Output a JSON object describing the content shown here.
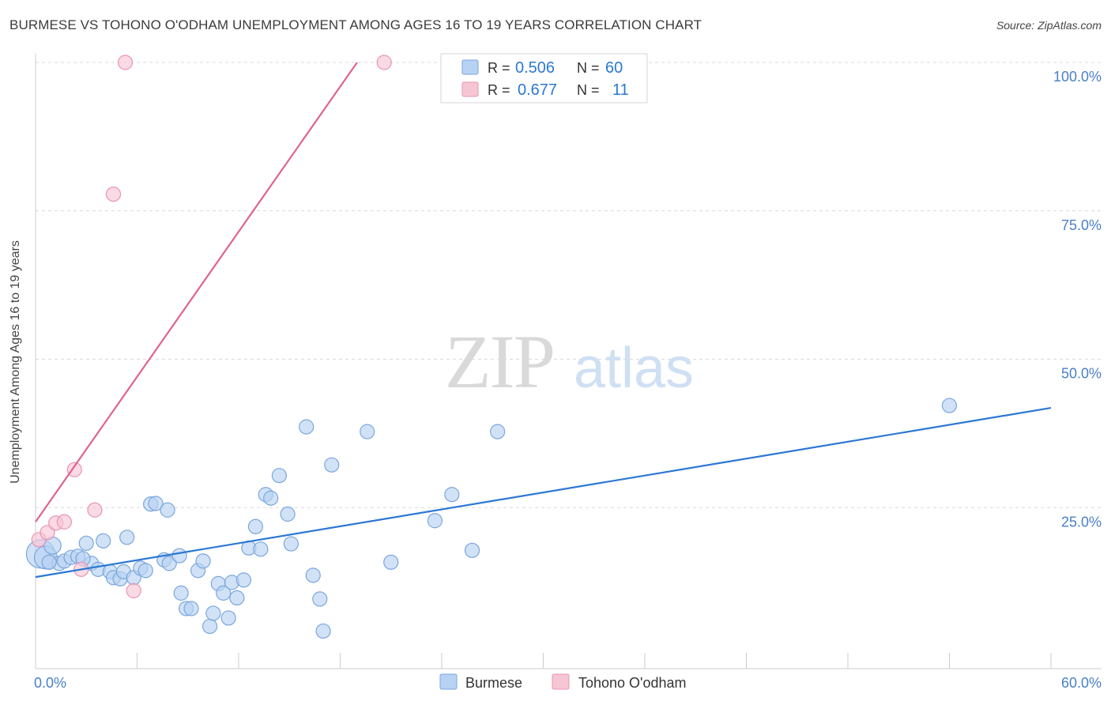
{
  "header": {
    "title": "BURMESE VS TOHONO O'ODHAM UNEMPLOYMENT AMONG AGES 16 TO 19 YEARS CORRELATION CHART",
    "source": "Source: ZipAtlas.com"
  },
  "watermark": {
    "zip": "ZIP",
    "atlas": "atlas"
  },
  "colors": {
    "blue_fill": "#b8d2f3",
    "blue_stroke": "#7aa6dc",
    "blue_line": "#2b78d4",
    "pink_fill": "#f7c6d5",
    "pink_stroke": "#e995b0",
    "pink_line": "#e0648c",
    "tick_label": "#4a7fc9",
    "grid": "#d9d9d9"
  },
  "legend_box": {
    "rows": [
      {
        "r_label": "R = ",
        "r_value": "0.506",
        "n_label": "N = ",
        "n_value": "60"
      },
      {
        "r_label": "R = ",
        "r_value": "0.677",
        "n_label": "N = ",
        "n_value": "11"
      }
    ]
  },
  "chart_data": {
    "type": "scatter",
    "title": "BURMESE VS TOHONO O'ODHAM UNEMPLOYMENT AMONG AGES 16 TO 19 YEARS CORRELATION CHART",
    "xlabel": "",
    "ylabel": "Unemployment Among Ages 16 to 19 years",
    "xlim": [
      0,
      60
    ],
    "ylim": [
      0,
      100
    ],
    "x_tick_labels": [
      {
        "value": 0,
        "label": "0.0%"
      },
      {
        "value": 60,
        "label": "60.0%"
      }
    ],
    "y_tick_labels": [
      {
        "value": 25,
        "label": "25.0%"
      },
      {
        "value": 50,
        "label": "50.0%"
      },
      {
        "value": 75,
        "label": "75.0%"
      },
      {
        "value": 100,
        "label": "100.0%"
      }
    ],
    "x_minor_ticks": [
      0,
      6,
      12,
      18,
      24,
      30,
      36,
      42,
      48,
      54,
      60
    ],
    "legend_position": "bottom-center",
    "series": [
      {
        "name": "Burmese",
        "color": "blue",
        "R": 0.506,
        "N": 60,
        "trend": {
          "x": [
            0,
            60
          ],
          "y": [
            13.3,
            41.8
          ]
        },
        "points": [
          {
            "x": 0.3,
            "y": 17.2,
            "s": 2
          },
          {
            "x": 0.6,
            "y": 16.6,
            "s": 1.6
          },
          {
            "x": 1.0,
            "y": 18.6,
            "s": 1.2
          },
          {
            "x": 1.4,
            "y": 15.6,
            "s": 1
          },
          {
            "x": 1.7,
            "y": 16.0,
            "s": 1
          },
          {
            "x": 2.1,
            "y": 16.6,
            "s": 1
          },
          {
            "x": 2.5,
            "y": 16.8,
            "s": 1
          },
          {
            "x": 3.0,
            "y": 19.0,
            "s": 1
          },
          {
            "x": 3.3,
            "y": 15.6,
            "s": 1
          },
          {
            "x": 3.7,
            "y": 14.6,
            "s": 1
          },
          {
            "x": 4.0,
            "y": 19.4,
            "s": 1
          },
          {
            "x": 4.4,
            "y": 14.2,
            "s": 1
          },
          {
            "x": 4.6,
            "y": 13.2,
            "s": 1
          },
          {
            "x": 5.0,
            "y": 13.0,
            "s": 1
          },
          {
            "x": 5.2,
            "y": 14.2,
            "s": 1
          },
          {
            "x": 5.4,
            "y": 20.0,
            "s": 1
          },
          {
            "x": 5.8,
            "y": 13.2,
            "s": 1
          },
          {
            "x": 6.2,
            "y": 14.8,
            "s": 1
          },
          {
            "x": 6.5,
            "y": 14.4,
            "s": 1
          },
          {
            "x": 6.8,
            "y": 25.6,
            "s": 1
          },
          {
            "x": 7.1,
            "y": 25.7,
            "s": 1
          },
          {
            "x": 7.6,
            "y": 16.2,
            "s": 1
          },
          {
            "x": 7.8,
            "y": 24.6,
            "s": 1
          },
          {
            "x": 7.9,
            "y": 15.6,
            "s": 1
          },
          {
            "x": 8.5,
            "y": 16.9,
            "s": 1
          },
          {
            "x": 8.6,
            "y": 10.6,
            "s": 1
          },
          {
            "x": 8.9,
            "y": 8.0,
            "s": 1
          },
          {
            "x": 9.2,
            "y": 8.0,
            "s": 1
          },
          {
            "x": 9.6,
            "y": 14.4,
            "s": 1
          },
          {
            "x": 9.9,
            "y": 16.0,
            "s": 1
          },
          {
            "x": 10.3,
            "y": 5.0,
            "s": 1
          },
          {
            "x": 10.5,
            "y": 7.2,
            "s": 1
          },
          {
            "x": 10.8,
            "y": 12.2,
            "s": 1
          },
          {
            "x": 11.1,
            "y": 10.6,
            "s": 1
          },
          {
            "x": 11.4,
            "y": 6.4,
            "s": 1
          },
          {
            "x": 11.6,
            "y": 12.4,
            "s": 1
          },
          {
            "x": 11.9,
            "y": 9.8,
            "s": 1
          },
          {
            "x": 12.3,
            "y": 12.8,
            "s": 1
          },
          {
            "x": 12.6,
            "y": 18.2,
            "s": 1
          },
          {
            "x": 13.0,
            "y": 21.8,
            "s": 1
          },
          {
            "x": 13.3,
            "y": 18.0,
            "s": 1
          },
          {
            "x": 13.6,
            "y": 27.2,
            "s": 1
          },
          {
            "x": 13.9,
            "y": 26.6,
            "s": 1
          },
          {
            "x": 14.4,
            "y": 30.4,
            "s": 1
          },
          {
            "x": 14.9,
            "y": 23.9,
            "s": 1
          },
          {
            "x": 15.1,
            "y": 18.9,
            "s": 1
          },
          {
            "x": 16.0,
            "y": 38.6,
            "s": 1
          },
          {
            "x": 16.4,
            "y": 13.6,
            "s": 1
          },
          {
            "x": 16.8,
            "y": 9.6,
            "s": 1
          },
          {
            "x": 17.0,
            "y": 4.2,
            "s": 1
          },
          {
            "x": 17.5,
            "y": 32.2,
            "s": 1
          },
          {
            "x": 19.6,
            "y": 37.8,
            "s": 1
          },
          {
            "x": 21.0,
            "y": 15.8,
            "s": 1
          },
          {
            "x": 23.6,
            "y": 22.8,
            "s": 1
          },
          {
            "x": 24.6,
            "y": 27.2,
            "s": 1
          },
          {
            "x": 25.8,
            "y": 17.8,
            "s": 1
          },
          {
            "x": 27.3,
            "y": 37.8,
            "s": 1
          },
          {
            "x": 54.0,
            "y": 42.2,
            "s": 1
          },
          {
            "x": 0.8,
            "y": 15.8,
            "s": 1
          },
          {
            "x": 2.8,
            "y": 16.4,
            "s": 1
          }
        ]
      },
      {
        "name": "Tohono O'odham",
        "color": "pink",
        "R": 0.677,
        "N": 11,
        "trend": {
          "x": [
            0,
            19.0
          ],
          "y": [
            22.6,
            100
          ]
        },
        "points": [
          {
            "x": 0.2,
            "y": 19.6
          },
          {
            "x": 0.7,
            "y": 20.8
          },
          {
            "x": 1.2,
            "y": 22.4
          },
          {
            "x": 1.7,
            "y": 22.6
          },
          {
            "x": 2.3,
            "y": 31.4
          },
          {
            "x": 2.7,
            "y": 14.6
          },
          {
            "x": 3.5,
            "y": 24.6
          },
          {
            "x": 4.6,
            "y": 77.8
          },
          {
            "x": 5.3,
            "y": 100
          },
          {
            "x": 5.8,
            "y": 11.0
          },
          {
            "x": 20.6,
            "y": 100
          }
        ]
      }
    ]
  }
}
